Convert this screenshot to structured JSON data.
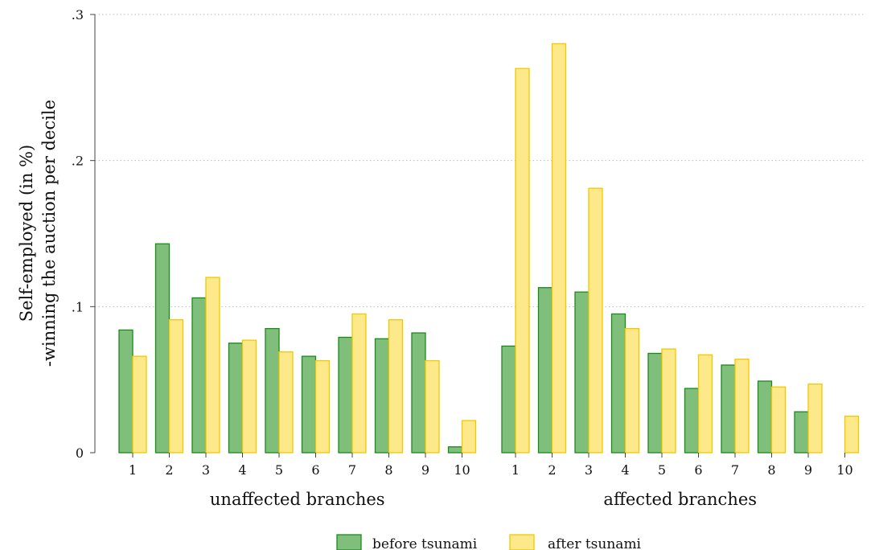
{
  "chart_data": {
    "type": "bar",
    "ylabel_lines": [
      "Self-employed (in %)",
      "-winning the auction per decile"
    ],
    "yticks": [
      0,
      0.1,
      0.2,
      0.3
    ],
    "ytick_labels": [
      "0",
      ".1",
      ".2",
      ".3"
    ],
    "ylim": [
      0,
      0.3
    ],
    "grid": true,
    "legend_position": "bottom",
    "colors": {
      "before_fill": "#7fbf7b",
      "before_stroke": "#1a8a1a",
      "after_fill": "#fde88a",
      "after_stroke": "#f2c800",
      "grid": "#bbbbbb",
      "axis": "#444444"
    },
    "series": [
      {
        "name": "before tsunami",
        "key": "before"
      },
      {
        "name": "after tsunami",
        "key": "after"
      }
    ],
    "groups": [
      {
        "label": "unaffected branches",
        "categories": [
          "1",
          "2",
          "3",
          "4",
          "5",
          "6",
          "7",
          "8",
          "9",
          "10"
        ],
        "before": [
          0.084,
          0.143,
          0.106,
          0.075,
          0.085,
          0.066,
          0.079,
          0.078,
          0.082,
          0.004
        ],
        "after": [
          0.066,
          0.091,
          0.12,
          0.077,
          0.069,
          0.063,
          0.095,
          0.091,
          0.063,
          0.022
        ]
      },
      {
        "label": "affected branches",
        "categories": [
          "1",
          "2",
          "3",
          "4",
          "5",
          "6",
          "7",
          "8",
          "9",
          "10"
        ],
        "before": [
          0.073,
          0.113,
          0.11,
          0.095,
          0.068,
          0.044,
          0.06,
          0.049,
          0.028,
          0.0
        ],
        "after": [
          0.263,
          0.28,
          0.181,
          0.085,
          0.071,
          0.067,
          0.064,
          0.045,
          0.047,
          0.025
        ]
      }
    ]
  }
}
